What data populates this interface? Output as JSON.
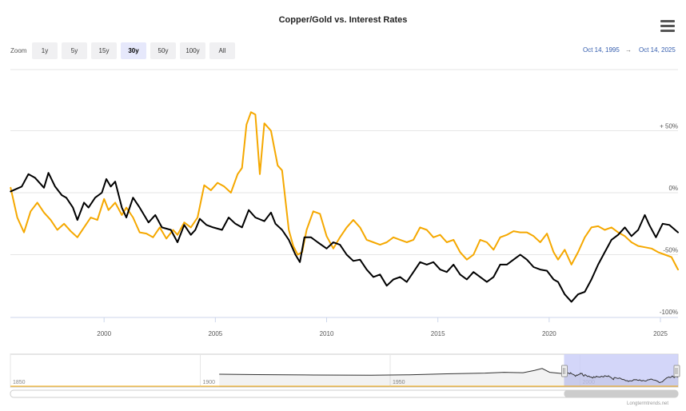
{
  "title": "Copper/Gold vs. Interest Rates",
  "zoom": {
    "label": "Zoom",
    "buttons": [
      "1y",
      "5y",
      "15y",
      "30y",
      "50y",
      "100y",
      "All"
    ],
    "active": "30y"
  },
  "range": {
    "from": "Oct 14, 1995",
    "separator": "→",
    "to": "Oct 14, 2025"
  },
  "credit": "Longtermtrends.net",
  "colors": {
    "copper_gold": "#000000",
    "interest_rates": "#f5a800",
    "navigator_fill": "#c8ccf8"
  },
  "chart_data": {
    "type": "line",
    "title": "Copper/Gold vs. Interest Rates",
    "x_range": [
      1995.79,
      2025.79
    ],
    "x_ticks": [
      "2000",
      "2005",
      "2010",
      "2015",
      "2020",
      "2025"
    ],
    "ylim": [
      -100,
      100
    ],
    "y_ticks": [
      {
        "value": 50,
        "label": "+ 50%"
      },
      {
        "value": 0,
        "label": "0%"
      },
      {
        "value": -50,
        "label": "-50%"
      },
      {
        "value": -100,
        "label": "-100%"
      }
    ],
    "grid": true,
    "series": [
      {
        "name": "Copper/Gold",
        "color": "#000000",
        "x": [
          1995.8,
          1996.3,
          1996.6,
          1996.9,
          1997.3,
          1997.5,
          1997.8,
          1998.1,
          1998.3,
          1998.6,
          1998.8,
          1999.1,
          1999.3,
          1999.6,
          1999.9,
          2000.1,
          2000.3,
          2000.5,
          2000.8,
          2001.0,
          2001.3,
          2001.6,
          2002.0,
          2002.3,
          2002.6,
          2003.0,
          2003.3,
          2003.6,
          2003.9,
          2004.1,
          2004.3,
          2004.6,
          2004.9,
          2005.3,
          2005.6,
          2005.9,
          2006.2,
          2006.5,
          2006.8,
          2007.2,
          2007.5,
          2007.7,
          2008.0,
          2008.3,
          2008.6,
          2008.8,
          2009.0,
          2009.3,
          2009.6,
          2010.0,
          2010.3,
          2010.6,
          2010.9,
          2011.2,
          2011.5,
          2011.8,
          2012.1,
          2012.4,
          2012.7,
          2013.0,
          2013.3,
          2013.6,
          2013.9,
          2014.2,
          2014.5,
          2014.8,
          2015.1,
          2015.4,
          2015.7,
          2016.0,
          2016.3,
          2016.6,
          2016.9,
          2017.2,
          2017.5,
          2017.8,
          2018.1,
          2018.4,
          2018.7,
          2019.0,
          2019.3,
          2019.6,
          2019.9,
          2020.2,
          2020.4,
          2020.7,
          2021.0,
          2021.3,
          2021.6,
          2021.9,
          2022.2,
          2022.5,
          2022.8,
          2023.1,
          2023.4,
          2023.7,
          2024.0,
          2024.3,
          2024.5,
          2024.8,
          2025.1,
          2025.4,
          2025.79
        ],
        "values": [
          1,
          5,
          15,
          12,
          4,
          16,
          5,
          -2,
          -4,
          -12,
          -22,
          -8,
          -12,
          -4,
          0,
          11,
          5,
          9,
          -12,
          -20,
          -4,
          -12,
          -24,
          -18,
          -28,
          -30,
          -40,
          -26,
          -34,
          -30,
          -21,
          -26,
          -28,
          -30,
          -20,
          -25,
          -28,
          -14,
          -20,
          -23,
          -16,
          -25,
          -30,
          -38,
          -50,
          -56,
          -36,
          -36,
          -40,
          -45,
          -40,
          -42,
          -50,
          -55,
          -54,
          -62,
          -68,
          -66,
          -75,
          -70,
          -68,
          -72,
          -64,
          -56,
          -58,
          -56,
          -62,
          -64,
          -58,
          -66,
          -70,
          -64,
          -68,
          -72,
          -68,
          -58,
          -58,
          -54,
          -50,
          -54,
          -60,
          -62,
          -63,
          -70,
          -72,
          -82,
          -88,
          -82,
          -80,
          -70,
          -58,
          -48,
          -38,
          -34,
          -28,
          -35,
          -30,
          -18,
          -26,
          -36,
          -25,
          -26,
          -32
        ]
      },
      {
        "name": "Interest Rates",
        "color": "#f5a800",
        "x": [
          1995.8,
          1996.1,
          1996.4,
          1996.7,
          1997.0,
          1997.3,
          1997.6,
          1997.9,
          1998.2,
          1998.5,
          1998.8,
          1999.1,
          1999.4,
          1999.7,
          2000.0,
          2000.2,
          2000.5,
          2000.8,
          2001.0,
          2001.3,
          2001.6,
          2001.9,
          2002.2,
          2002.5,
          2002.8,
          2003.1,
          2003.3,
          2003.6,
          2003.9,
          2004.2,
          2004.5,
          2004.8,
          2005.1,
          2005.4,
          2005.7,
          2006.0,
          2006.2,
          2006.4,
          2006.6,
          2006.8,
          2007.0,
          2007.2,
          2007.5,
          2007.8,
          2008.0,
          2008.3,
          2008.5,
          2008.7,
          2008.9,
          2009.1,
          2009.4,
          2009.7,
          2010.0,
          2010.3,
          2010.6,
          2010.9,
          2011.2,
          2011.5,
          2011.8,
          2012.1,
          2012.4,
          2012.7,
          2013.0,
          2013.3,
          2013.6,
          2013.9,
          2014.2,
          2014.5,
          2014.8,
          2015.1,
          2015.4,
          2015.7,
          2016.0,
          2016.3,
          2016.6,
          2016.9,
          2017.2,
          2017.5,
          2017.8,
          2018.1,
          2018.4,
          2018.7,
          2019.0,
          2019.3,
          2019.6,
          2019.9,
          2020.2,
          2020.4,
          2020.7,
          2021.0,
          2021.3,
          2021.6,
          2021.9,
          2022.2,
          2022.5,
          2022.8,
          2023.1,
          2023.4,
          2023.7,
          2024.0,
          2024.3,
          2024.6,
          2024.9,
          2025.2,
          2025.5,
          2025.79
        ],
        "values": [
          4,
          -20,
          -32,
          -15,
          -8,
          -16,
          -22,
          -30,
          -25,
          -31,
          -36,
          -28,
          -20,
          -22,
          -5,
          -14,
          -8,
          -18,
          -12,
          -20,
          -32,
          -33,
          -36,
          -28,
          -37,
          -30,
          -34,
          -24,
          -28,
          -20,
          6,
          2,
          8,
          5,
          0,
          15,
          20,
          55,
          65,
          63,
          15,
          56,
          50,
          22,
          18,
          -30,
          -43,
          -50,
          -48,
          -30,
          -15,
          -17,
          -35,
          -45,
          -36,
          -28,
          -22,
          -28,
          -38,
          -40,
          -42,
          -40,
          -36,
          -38,
          -40,
          -38,
          -28,
          -30,
          -36,
          -34,
          -40,
          -38,
          -48,
          -54,
          -50,
          -38,
          -40,
          -46,
          -36,
          -34,
          -31,
          -32,
          -32,
          -35,
          -40,
          -33,
          -48,
          -54,
          -46,
          -58,
          -48,
          -36,
          -28,
          -27,
          -30,
          -28,
          -32,
          -35,
          -40,
          -43,
          -44,
          -45,
          -48,
          -50,
          -52,
          -62
        ]
      }
    ],
    "navigator": {
      "x_range": [
        1850,
        2025.79
      ],
      "x_ticks": [
        "1850",
        "1900",
        "1950",
        "2000"
      ],
      "selected_range": [
        1995.79,
        2025.79
      ]
    }
  }
}
